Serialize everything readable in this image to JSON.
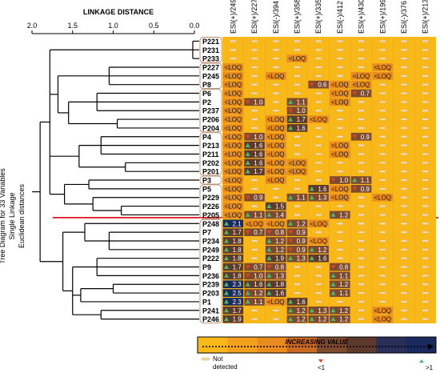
{
  "chart_data": {
    "type": "heatmap",
    "side_title": [
      "Tree Diagram for 33 Variables",
      "Single Linkage",
      "Euclidean distances"
    ],
    "dendrogram": {
      "axis_label": "LINKAGE DISTANCE",
      "ticks": [
        "2.0",
        "1.5",
        "1.0",
        "0.5",
        "0.0"
      ],
      "tick_values": [
        2.0,
        1.5,
        1.0,
        0.5,
        0.0
      ],
      "xlim": [
        2.0,
        0.0
      ],
      "cut_distance": 1.85
    },
    "columns": [
      "ESI(+)/249",
      "ESI(+)/227",
      "ESI(-)/394",
      "ESI(+)/358",
      "ESI(+)/335",
      "ESI(-)/412",
      "ESI(+)/430",
      "ESI(+)/199",
      "ESI(-)/376",
      "ESI(+)/213"
    ],
    "rows": [
      "P221",
      "P231",
      "P233",
      "P227",
      "P245",
      "P8",
      "P6",
      "P2",
      "P237",
      "P206",
      "P204",
      "P4",
      "P213",
      "P211",
      "P202",
      "P201",
      "P3",
      "P5",
      "P229",
      "P226",
      "P205",
      "P248",
      "P7",
      "P234",
      "P249",
      "P222",
      "P9",
      "P236",
      "P239",
      "P203",
      "P1",
      "P241",
      "P246"
    ],
    "cells": [
      [
        "",
        "",
        "",
        "",
        "",
        "",
        "",
        "",
        "",
        ""
      ],
      [
        "",
        "",
        "",
        "",
        "",
        "",
        "",
        "",
        "",
        ""
      ],
      [
        "",
        "",
        "",
        "<LOQ",
        "",
        "",
        "",
        "",
        "",
        ""
      ],
      [
        "<LOQ",
        "",
        "",
        "",
        "",
        "",
        "",
        "<LOQ",
        "",
        ""
      ],
      [
        "<LOQ",
        "",
        "<LOQ",
        "",
        "",
        "",
        "<LOQ",
        "<LOQ",
        "",
        ""
      ],
      [
        "<LOQ",
        "",
        "",
        "",
        "0.6",
        "<LOQ",
        "<LOQ",
        "",
        "",
        ""
      ],
      [
        "<LOQ",
        "",
        "",
        "",
        "",
        "<LOQ",
        "0.7",
        "",
        "",
        ""
      ],
      [
        "<LOQ",
        "1.0",
        "",
        "1.1",
        "",
        "<LOQ",
        "",
        "",
        "",
        ""
      ],
      [
        "<LOQ",
        "",
        "",
        "1.0",
        "",
        "",
        "",
        "",
        "",
        ""
      ],
      [
        "<LOQ",
        "",
        "<LOQ",
        "1.7",
        "<LOQ",
        "",
        "",
        "",
        "",
        ""
      ],
      [
        "<LOQ",
        "",
        "<LOQ",
        "1.6",
        "",
        "",
        "",
        "",
        "",
        ""
      ],
      [
        "<LOQ",
        "1.0",
        "<LOQ",
        "",
        "",
        "",
        "0.9",
        "",
        "",
        ""
      ],
      [
        "<LOQ",
        "1.6",
        "<LOQ",
        "",
        "",
        "<LOQ",
        "",
        "",
        "",
        ""
      ],
      [
        "<LOQ",
        "1.6",
        "<LOQ",
        "",
        "",
        "<LOQ",
        "",
        "",
        "",
        ""
      ],
      [
        "<LOQ",
        "1.6",
        "<LOQ",
        "<LOQ",
        "",
        "",
        "",
        "",
        "",
        ""
      ],
      [
        "<LOQ",
        "1.7",
        "<LOQ",
        "<LOQ",
        "",
        "",
        "",
        "",
        "",
        ""
      ],
      [
        "<LOQ",
        "",
        "<LOQ",
        "",
        "",
        "1.0",
        "1.1",
        "",
        "",
        ""
      ],
      [
        "<LOQ",
        "",
        "",
        "",
        "1.6",
        "<LOQ",
        "0.9",
        "",
        "",
        ""
      ],
      [
        "<LOQ",
        "0.9",
        "",
        "1.1",
        "1.3",
        "<LOQ",
        "",
        "<LOQ",
        "",
        ""
      ],
      [
        "<LOQ",
        "",
        "1.5",
        "",
        "",
        "",
        "",
        "",
        "",
        ""
      ],
      [
        "<LOQ",
        "1.1",
        "1.4",
        "",
        "",
        "1.2",
        "",
        "",
        "",
        ""
      ],
      [
        "2.1",
        "<LOQ",
        "<LOQ",
        "1.2",
        "<LOQ",
        "",
        "",
        "",
        "",
        ""
      ],
      [
        "1.7",
        "0.7",
        "0.8",
        "0.9",
        "",
        "",
        "",
        "",
        "",
        ""
      ],
      [
        "1.8",
        "",
        "1.2",
        "0.9",
        "<LOQ",
        "",
        "",
        "",
        "",
        ""
      ],
      [
        "1.8",
        "",
        "1.2",
        "0.9",
        "1.2",
        "",
        "",
        "",
        "",
        ""
      ],
      [
        "1.8",
        "",
        "1.9",
        "1.3",
        "1.6",
        "",
        "",
        "",
        "",
        ""
      ],
      [
        "1.7",
        "0.7",
        "0.8",
        "",
        "",
        "0.8",
        "",
        "",
        "",
        ""
      ],
      [
        "1.8",
        "1.0",
        "1.3",
        "",
        "",
        "1.1",
        "",
        "",
        "",
        ""
      ],
      [
        "2.3",
        "1.6",
        "1.8",
        "",
        "",
        "1.2",
        "",
        "",
        "",
        ""
      ],
      [
        "2.5",
        "1.2",
        "1.6",
        "",
        "",
        "1.1",
        "",
        "",
        "",
        ""
      ],
      [
        "2.3",
        "1.1",
        "<LOQ",
        "1.6",
        "",
        "",
        "",
        "",
        "",
        ""
      ],
      [
        "1.7",
        "",
        "",
        "1.2",
        "1.3",
        "1.2",
        "",
        "<LOQ",
        "",
        ""
      ],
      [
        "1.9",
        "",
        "",
        "1.2",
        "1.2",
        "1.2",
        "",
        "<LOQ",
        "",
        ""
      ]
    ],
    "legend": {
      "title": "INCREASING VALUE",
      "not_detected": "Not detected",
      "down_label": "<1",
      "up_label": ">1"
    }
  },
  "colors": {
    "background_cell": "#f8b81a",
    "loq_cell": "#ea8b1e",
    "dark_brown": "#7d4a30",
    "deep_brown": "#5d3a2c",
    "navy": "#1a2a5e",
    "up_arrow": "#4cb86c",
    "down_arrow": "#d2452d",
    "cut_line": "#e0141e",
    "dash": "#f2ddb8"
  }
}
